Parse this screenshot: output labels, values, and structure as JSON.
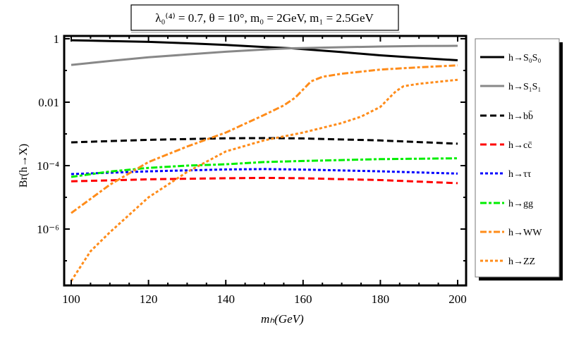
{
  "chart_data": {
    "type": "line",
    "title": "λ₀⁽⁴⁾ = 0.7, θ = 10°, m₀ = 2GeV, m₁ = 2.5GeV",
    "xlabel": "mₕ(GeV)",
    "ylabel": "Br(h→X)",
    "xlim": [
      99,
      202
    ],
    "ylim": [
      1.7e-08,
      1.25
    ],
    "yscale": "log",
    "grid": false,
    "legend_position": "right-outside",
    "x_ticks": [
      "100",
      "120",
      "140",
      "160",
      "180",
      "200"
    ],
    "y_ticks": [
      {
        "value": 1,
        "label": "1"
      },
      {
        "value": 0.01,
        "label": "0.01"
      },
      {
        "value": 0.0001,
        "label": "10⁻⁴"
      },
      {
        "value": 1e-06,
        "label": "10⁻⁶"
      }
    ],
    "series": [
      {
        "name": "h→S₀S₀",
        "color": "#000000",
        "style": "solid",
        "x": [
          100,
          110,
          120,
          130,
          140,
          150,
          157,
          170,
          180,
          190,
          200
        ],
        "y": [
          0.9,
          0.85,
          0.8,
          0.72,
          0.64,
          0.55,
          0.5,
          0.38,
          0.3,
          0.25,
          0.21
        ]
      },
      {
        "name": "h→S₁S₁",
        "color": "#888888",
        "style": "solid",
        "x": [
          100,
          110,
          120,
          130,
          140,
          150,
          157,
          170,
          180,
          190,
          200
        ],
        "y": [
          0.15,
          0.2,
          0.26,
          0.32,
          0.39,
          0.46,
          0.5,
          0.54,
          0.57,
          0.59,
          0.6
        ]
      },
      {
        "name": "h→bb̄",
        "color": "#000000",
        "style": "dashed",
        "x": [
          100,
          120,
          140,
          150,
          160,
          180,
          200
        ],
        "y": [
          0.00054,
          0.00065,
          0.00073,
          0.00074,
          0.00072,
          0.00062,
          0.00049
        ]
      },
      {
        "name": "h→cc̄",
        "color": "#ff0000",
        "style": "dashed",
        "x": [
          100,
          120,
          140,
          150,
          160,
          180,
          200
        ],
        "y": [
          3.2e-05,
          3.7e-05,
          4e-05,
          4.1e-05,
          4e-05,
          3.5e-05,
          2.8e-05
        ]
      },
      {
        "name": "h→ττ",
        "color": "#0000ff",
        "style": "dotted",
        "x": [
          100,
          120,
          140,
          150,
          160,
          180,
          200
        ],
        "y": [
          5.4e-05,
          6.6e-05,
          7.6e-05,
          7.8e-05,
          7.5e-05,
          6.6e-05,
          5.6e-05
        ]
      },
      {
        "name": "h→gg",
        "color": "#00ee00",
        "style": "dashdot",
        "x": [
          100,
          110,
          120,
          130,
          140,
          150,
          160,
          180,
          200
        ],
        "y": [
          4.4e-05,
          6.5e-05,
          8.5e-05,
          0.0001,
          0.00011,
          0.00013,
          0.00014,
          0.00016,
          0.00017
        ]
      },
      {
        "name": "h→WW",
        "color": "#ff8c1a",
        "style": "dashdot",
        "x": [
          100,
          110,
          120,
          130,
          140,
          150,
          155,
          158,
          160,
          162,
          165,
          170,
          180,
          190,
          200
        ],
        "y": [
          3.2e-06,
          2.5e-05,
          0.00013,
          0.0004,
          0.0011,
          0.004,
          0.0079,
          0.014,
          0.025,
          0.045,
          0.063,
          0.079,
          0.107,
          0.126,
          0.145
        ]
      },
      {
        "name": "h→ZZ",
        "color": "#ff8c1a",
        "style": "dotted",
        "x": [
          100,
          105,
          110,
          120,
          130,
          140,
          150,
          160,
          170,
          175,
          180,
          182,
          184,
          186,
          190,
          200
        ],
        "y": [
          2.3e-08,
          2e-07,
          7.9e-07,
          1e-05,
          6.3e-05,
          0.00028,
          0.00063,
          0.0011,
          0.0022,
          0.0035,
          0.0071,
          0.0126,
          0.022,
          0.032,
          0.038,
          0.051
        ]
      }
    ]
  }
}
